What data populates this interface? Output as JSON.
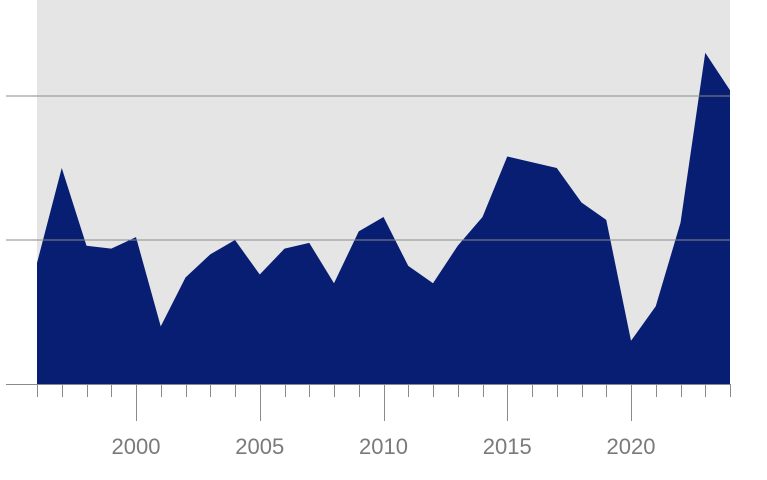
{
  "colors": {
    "plot_background": "#e5e5e5",
    "area_fill": "#071e72",
    "gridline": "#8a8a8a",
    "axis": "#8a8a8a",
    "tick_label": "#7a7a7a"
  },
  "chart_data": {
    "type": "area",
    "title": "",
    "xlabel": "",
    "ylabel": "",
    "xlim": [
      1996,
      2024
    ],
    "ylim": [
      0,
      100
    ],
    "grid": true,
    "y_gridlines": [
      50,
      100
    ],
    "x_tick_labels": [
      2000,
      2005,
      2010,
      2015,
      2020
    ],
    "x_minor_ticks": [
      1996,
      1997,
      1998,
      1999,
      2000,
      2001,
      2002,
      2003,
      2004,
      2005,
      2006,
      2007,
      2008,
      2009,
      2010,
      2011,
      2012,
      2013,
      2014,
      2015,
      2016,
      2017,
      2018,
      2019,
      2020,
      2021,
      2022,
      2023,
      2024
    ],
    "x": [
      1996,
      1997,
      1998,
      1999,
      2000,
      2001,
      2002,
      2003,
      2004,
      2005,
      2006,
      2007,
      2008,
      2009,
      2010,
      2011,
      2012,
      2013,
      2014,
      2015,
      2016,
      2017,
      2018,
      2019,
      2020,
      2021,
      2022,
      2023,
      2024
    ],
    "series": [
      {
        "values": [
          42,
          75,
          48,
          47,
          51,
          20,
          37,
          45,
          50,
          38,
          47,
          49,
          35,
          53,
          58,
          41,
          35,
          48,
          58,
          79,
          77,
          75,
          63,
          57,
          15,
          27,
          56,
          115,
          102
        ]
      }
    ]
  }
}
